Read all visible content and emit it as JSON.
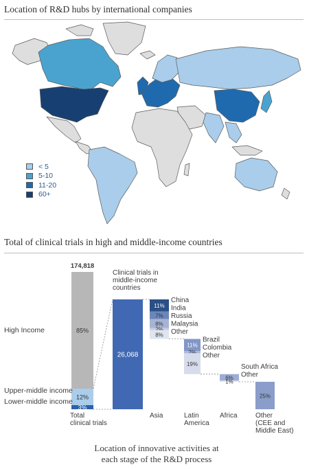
{
  "map_section": {
    "title": "Location of R&D hubs by international companies",
    "legend": [
      {
        "label": "< 5",
        "color": "#a9cdea"
      },
      {
        "label": "5-10",
        "color": "#4aa3cf"
      },
      {
        "label": "11-20",
        "color": "#1f6aae"
      },
      {
        "label": "60+",
        "color": "#173f72"
      }
    ],
    "map_colors": {
      "land": "#dedede",
      "border": "#5a5a5a"
    }
  },
  "chart_section": {
    "title": "Total of clinical trials in high and middle-income countries",
    "caption_line1": "Location of innovative activities at",
    "caption_line2": "each stage of the R&D process"
  },
  "chart_data": {
    "type": "bar",
    "total": {
      "value_label": "174,818",
      "segments": [
        {
          "name": "High Income",
          "value_label": "85%",
          "color": "#b7b7b7"
        },
        {
          "name": "Upper-middle income",
          "value_label": "12%",
          "color": "#a9cdea"
        },
        {
          "name": "Lower-middle income",
          "value_label": "3%",
          "color": "#2f5fa8"
        }
      ],
      "category": "Total\nclinical trials"
    },
    "middle_income": {
      "header": "Clinical trials in\nmiddle-income\ncountries",
      "value_label": "26,068",
      "color": "#4169b3"
    },
    "regions": [
      {
        "category": "Asia",
        "segments": [
          {
            "name": "China",
            "value_label": "11%",
            "color": "#2b4f86"
          },
          {
            "name": "India",
            "value_label": "7%",
            "color": "#6d86b8"
          },
          {
            "name": "Russia",
            "value_label": "8%",
            "color": "#a6b4d3"
          },
          {
            "name": "Malaysia",
            "value_label": "2%",
            "color": "#c4cde2"
          },
          {
            "name": "Other",
            "value_label": "8%",
            "color": "#dfe4ef"
          }
        ]
      },
      {
        "category": "Latin\nAmerica",
        "segments": [
          {
            "name": "Brazil",
            "value_label": "11%",
            "color": "#8296c7"
          },
          {
            "name": "Colombia",
            "value_label": "2%",
            "color": "#a9b7db"
          },
          {
            "name": "Other",
            "value_label": "19%",
            "color": "#d7dcec"
          }
        ]
      },
      {
        "category": "Africa",
        "segments": [
          {
            "name": "South Africa",
            "value_label": "6%",
            "color": "#9daed6"
          },
          {
            "name": "Other",
            "value_label": "1%",
            "color": "#e1e5f1"
          }
        ]
      },
      {
        "category": "Other\n(CEE and\nMiddle East)",
        "segments": [
          {
            "name": "",
            "value_label": "25%",
            "color": "#8b9dca"
          }
        ]
      }
    ]
  }
}
